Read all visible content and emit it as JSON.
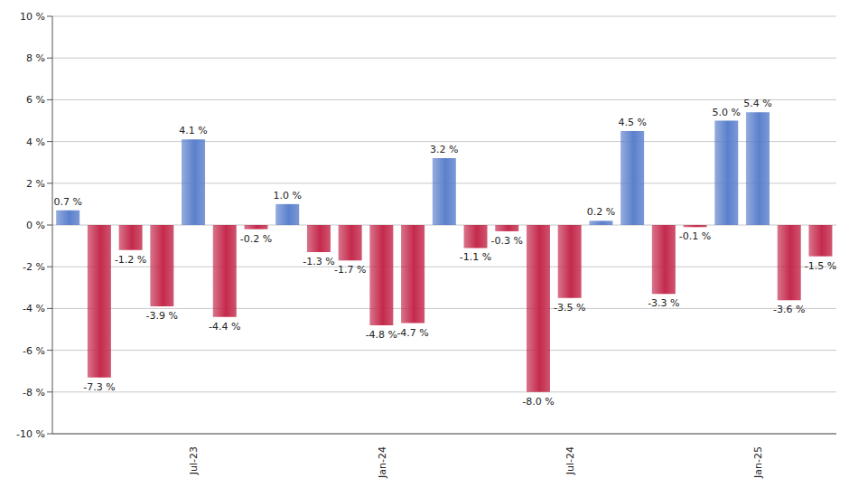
{
  "chart_data": {
    "type": "bar",
    "categories": [
      null,
      null,
      null,
      null,
      "Jul-23",
      null,
      null,
      null,
      null,
      null,
      "Jan-24",
      null,
      null,
      null,
      null,
      null,
      "Jul-24",
      null,
      null,
      null,
      null,
      null,
      "Jan-25",
      null,
      null
    ],
    "values": [
      0.7,
      -7.3,
      -1.2,
      -3.9,
      4.1,
      -4.4,
      -0.2,
      1.0,
      -1.3,
      -1.7,
      -4.8,
      -4.7,
      3.2,
      -1.1,
      -0.3,
      -8.0,
      -3.5,
      0.2,
      4.5,
      -3.3,
      -0.1,
      5.0,
      5.4,
      -3.6,
      -1.5
    ],
    "value_labels": [
      "0.7 %",
      "-7.3 %",
      "-1.2 %",
      "-3.9 %",
      "4.1 %",
      "-4.4 %",
      "-0.2 %",
      "1.0 %",
      "-1.3 %",
      "-1.7 %",
      "-4.8 %",
      "-4.7 %",
      "3.2 %",
      "-1.1 %",
      "-0.3 %",
      "-8.0 %",
      "-3.5 %",
      "0.2 %",
      "4.5 %",
      "-3.3 %",
      "-0.1 %",
      "5.0 %",
      "5.4 %",
      "-3.6 %",
      "-1.5 %"
    ],
    "colors": [
      "#5b80cc",
      "#c42a4c",
      "#c42a4c",
      "#c42a4c",
      "#5b80cc",
      "#c42a4c",
      "#c42a4c",
      "#5b80cc",
      "#c42a4c",
      "#c42a4c",
      "#c42a4c",
      "#c42a4c",
      "#5b80cc",
      "#c42a4c",
      "#c42a4c",
      "#c42a4c",
      "#c42a4c",
      "#5b80cc",
      "#5b80cc",
      "#c42a4c",
      "#c42a4c",
      "#5b80cc",
      "#5b80cc",
      "#c42a4c",
      "#c42a4c"
    ],
    "ylim": [
      -10,
      10
    ],
    "yticks": [
      {
        "value": -10,
        "label": "-10 %"
      },
      {
        "value": -8,
        "label": "-8 %"
      },
      {
        "value": -6,
        "label": "-6 %"
      },
      {
        "value": -4,
        "label": "-4 %"
      },
      {
        "value": -2,
        "label": "-2 %"
      },
      {
        "value": 0,
        "label": "0 %"
      },
      {
        "value": 2,
        "label": "2 %"
      },
      {
        "value": 4,
        "label": "4 %"
      },
      {
        "value": 6,
        "label": "6 %"
      },
      {
        "value": 8,
        "label": "8 %"
      },
      {
        "value": 10,
        "label": "10 %"
      }
    ],
    "grid": true,
    "data_labels": true
  }
}
